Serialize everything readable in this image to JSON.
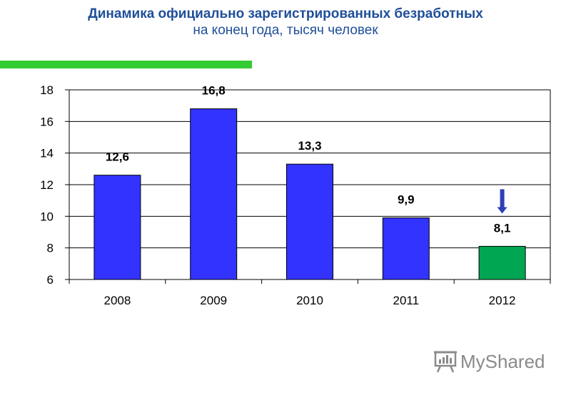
{
  "header": {
    "title": "Динамика официально зарегистрированных безработных",
    "subtitle": "на конец года, тысяч человек"
  },
  "colors": {
    "accent_bar": "#33cc33",
    "bar_default": "#3333ff",
    "bar_highlight": "#00a651",
    "arrow": "#2e3fb8"
  },
  "chart_data": {
    "type": "bar",
    "title": "",
    "xlabel": "",
    "ylabel": "",
    "categories": [
      "2008",
      "2009",
      "2010",
      "2011",
      "2012"
    ],
    "values": [
      12.6,
      16.8,
      13.3,
      9.9,
      8.1
    ],
    "value_labels": [
      "12,6",
      "16,8",
      "13,3",
      "9,9",
      "8,1"
    ],
    "highlight_index": 4,
    "ylim": [
      6,
      18
    ],
    "yticks": [
      6,
      8,
      10,
      12,
      14,
      16,
      18
    ],
    "grid": true,
    "annotation": "down-arrow-icon"
  },
  "watermark": {
    "text": "MyShared",
    "icon": "presentation-board-icon"
  }
}
